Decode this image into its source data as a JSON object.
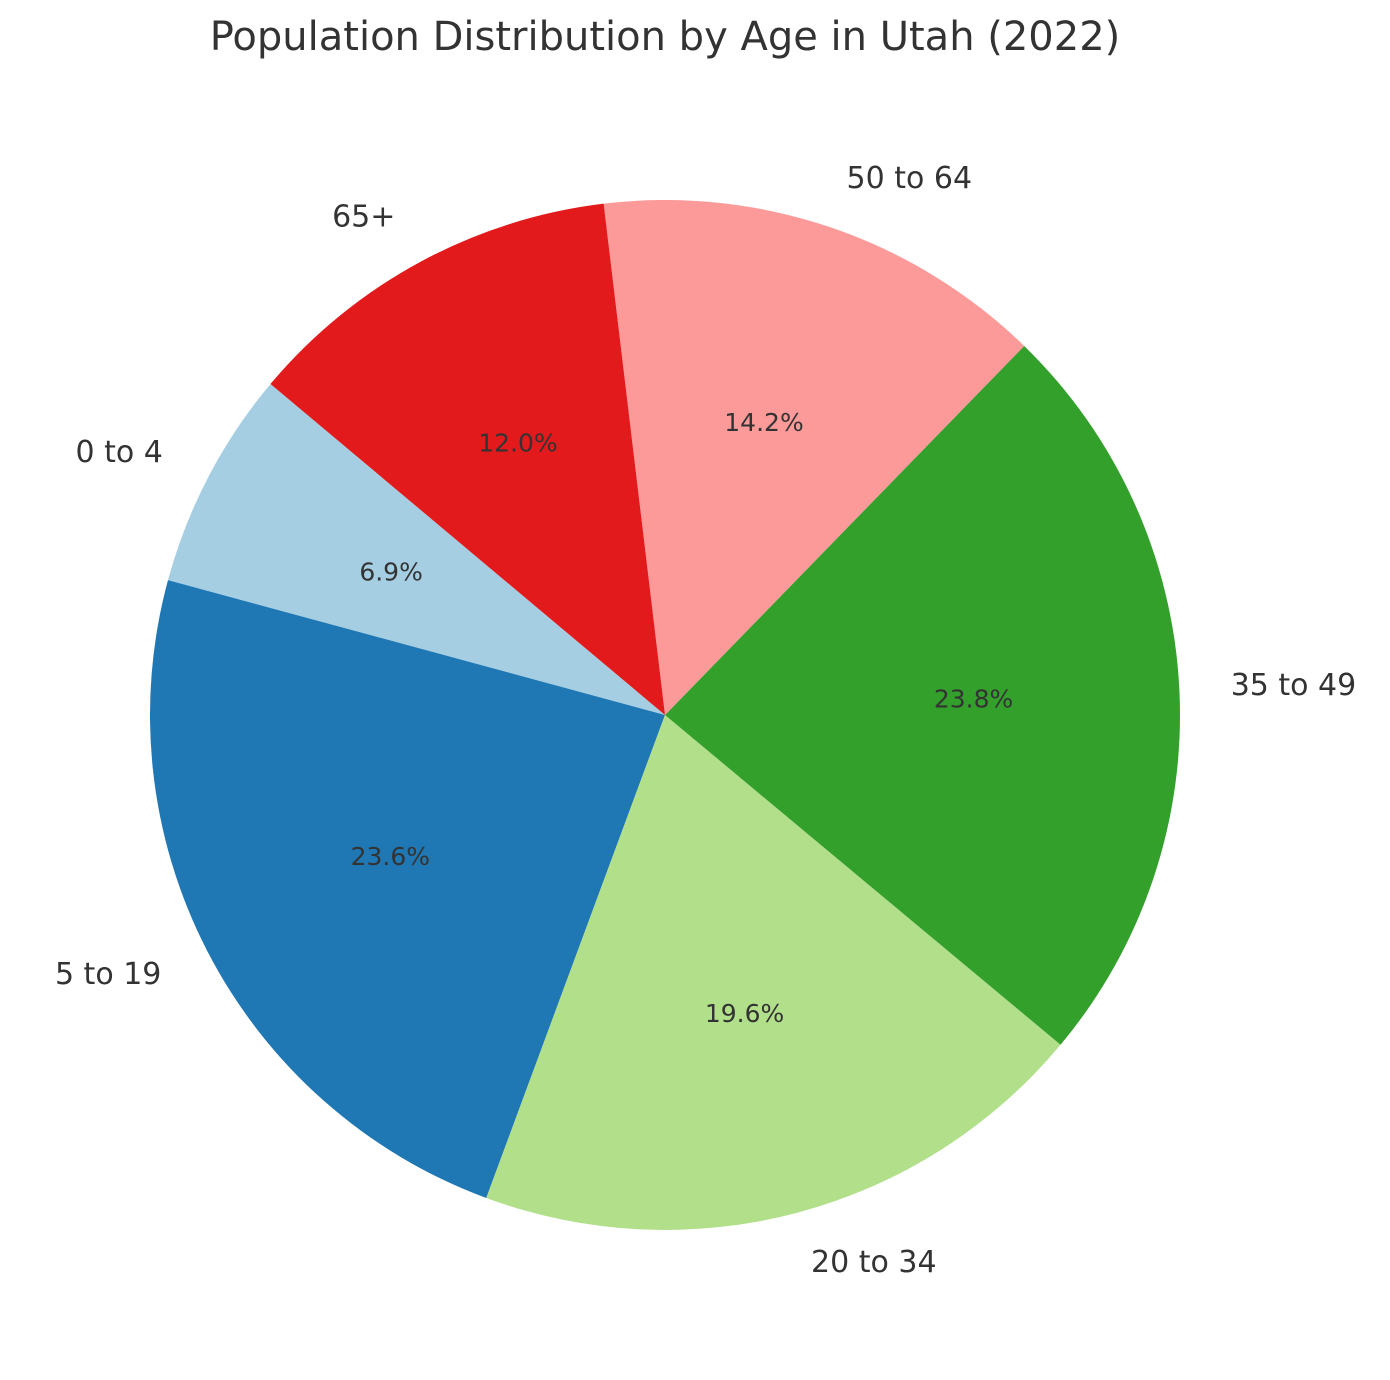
{
  "chart_data": {
    "type": "pie",
    "title": "Population Distribution by Age in Utah (2022)",
    "categories": [
      "0 to 4",
      "5 to 19",
      "20 to 34",
      "35 to 49",
      "50 to 64",
      "65+"
    ],
    "values": [
      6.9,
      23.6,
      19.6,
      23.8,
      14.2,
      12.0
    ],
    "percent_labels": [
      "6.9%",
      "23.6%",
      "19.6%",
      "23.8%",
      "14.2%",
      "12.0%"
    ],
    "colors": [
      "#a6cee3",
      "#1f78b4",
      "#b2df8a",
      "#33a02c",
      "#fb9a99",
      "#e31a1c"
    ],
    "start_angle": 140,
    "direction": "counterclockwise",
    "legend": null,
    "xlabel": "",
    "ylabel": ""
  }
}
